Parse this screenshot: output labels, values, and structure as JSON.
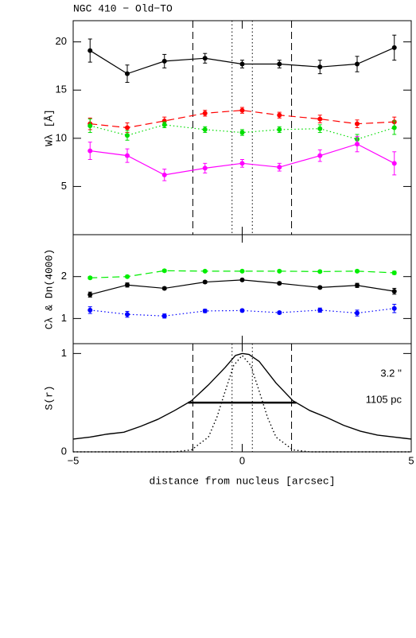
{
  "chart_data": [
    {
      "type": "line",
      "title": "NGC 410  −  Old−TO",
      "ylabel": "Wλ [Å]",
      "x": [
        -4.5,
        -3.4,
        -2.3,
        -1.1,
        0,
        1.1,
        2.3,
        3.4,
        4.5
      ],
      "xlim": [
        -5,
        5
      ],
      "xticks": [
        -5,
        0,
        5
      ],
      "ylim": [
        0,
        22.2
      ],
      "yticks": [
        5,
        10,
        15,
        20
      ],
      "vlines": [
        {
          "x": -1.46,
          "style": "dashed"
        },
        {
          "x": 1.46,
          "style": "dashed"
        },
        {
          "x": -0.3,
          "style": "dotted"
        },
        {
          "x": 0.3,
          "style": "dotted"
        }
      ],
      "series": [
        {
          "color": "#000000",
          "style": "solid",
          "values": [
            19.1,
            16.7,
            18.0,
            18.3,
            17.7,
            17.7,
            17.4,
            17.7,
            19.4
          ],
          "errors": [
            1.2,
            0.9,
            0.7,
            0.5,
            0.4,
            0.4,
            0.7,
            0.8,
            1.3
          ]
        },
        {
          "color": "#ff0000",
          "style": "dashed",
          "values": [
            11.5,
            11.1,
            11.8,
            12.6,
            12.9,
            12.4,
            12.0,
            11.5,
            11.7
          ],
          "errors": [
            0.6,
            0.5,
            0.4,
            0.3,
            0.3,
            0.3,
            0.4,
            0.4,
            0.5
          ]
        },
        {
          "color": "#00dd00",
          "style": "dotted",
          "values": [
            11.3,
            10.3,
            11.4,
            10.9,
            10.6,
            10.9,
            11.0,
            9.9,
            11.1
          ],
          "errors": [
            0.7,
            0.5,
            0.3,
            0.3,
            0.3,
            0.3,
            0.4,
            0.5,
            0.7
          ]
        },
        {
          "color": "#ff00ff",
          "style": "solid",
          "values": [
            8.7,
            8.2,
            6.2,
            6.9,
            7.4,
            7.0,
            8.2,
            9.4,
            7.4
          ],
          "errors": [
            0.9,
            0.7,
            0.6,
            0.5,
            0.4,
            0.4,
            0.6,
            0.8,
            1.2
          ]
        }
      ]
    },
    {
      "type": "line",
      "ylabel": "Cλ & Dn(4000)",
      "x": [
        -4.5,
        -3.4,
        -2.3,
        -1.1,
        0,
        1.1,
        2.3,
        3.4,
        4.5
      ],
      "xlim": [
        -5,
        5
      ],
      "xticks": [
        -5,
        0,
        5
      ],
      "ylim": [
        0.4,
        3.0
      ],
      "yticks": [
        1,
        2
      ],
      "series": [
        {
          "color": "#00ee00",
          "style": "dashed",
          "values": [
            1.97,
            2.0,
            2.14,
            2.13,
            2.13,
            2.13,
            2.12,
            2.13,
            2.09
          ],
          "errors": [
            0.03,
            0.03,
            0.03,
            0.02,
            0.02,
            0.02,
            0.02,
            0.03,
            0.04
          ]
        },
        {
          "color": "#000000",
          "style": "solid",
          "values": [
            1.57,
            1.8,
            1.72,
            1.87,
            1.92,
            1.84,
            1.74,
            1.79,
            1.65
          ],
          "errors": [
            0.06,
            0.05,
            0.03,
            0.03,
            0.03,
            0.03,
            0.03,
            0.05,
            0.07
          ]
        },
        {
          "color": "#0000ff",
          "style": "dotted",
          "values": [
            1.2,
            1.1,
            1.06,
            1.18,
            1.19,
            1.14,
            1.2,
            1.13,
            1.24
          ],
          "errors": [
            0.08,
            0.07,
            0.05,
            0.04,
            0.03,
            0.03,
            0.05,
            0.07,
            0.1
          ]
        }
      ]
    },
    {
      "type": "line",
      "ylabel": "S(r)",
      "xlabel": "distance from nucleus [arcsec]",
      "xlim": [
        -5,
        5
      ],
      "xticks": [
        {
          "value": -5,
          "label": "−5"
        },
        0,
        5
      ],
      "ylim": [
        0,
        1.1
      ],
      "yticks": [
        0,
        1
      ],
      "vlines": [
        {
          "x": -1.46,
          "style": "dashed"
        },
        {
          "x": 1.46,
          "style": "dashed"
        },
        {
          "x": -0.3,
          "style": "dotted"
        },
        {
          "x": 0.3,
          "style": "dotted"
        }
      ],
      "series": [
        {
          "color": "#000000",
          "style": "solid",
          "x": [
            -5,
            -4.5,
            -4,
            -3.5,
            -3,
            -2.5,
            -2,
            -1.5,
            -1,
            -0.5,
            -0.2,
            0,
            0.2,
            0.5,
            1,
            1.5,
            2,
            2.5,
            3,
            3.5,
            4,
            4.5,
            5
          ],
          "values": [
            0.13,
            0.15,
            0.18,
            0.2,
            0.26,
            0.33,
            0.42,
            0.52,
            0.68,
            0.86,
            0.98,
            1.0,
            0.99,
            0.92,
            0.7,
            0.52,
            0.42,
            0.35,
            0.27,
            0.21,
            0.17,
            0.15,
            0.13
          ]
        },
        {
          "color": "#000000",
          "style": "dotted",
          "x": [
            -5,
            -2,
            -1.5,
            -1,
            -0.75,
            -0.5,
            -0.25,
            0,
            0.25,
            0.5,
            0.75,
            1,
            1.5,
            2,
            5
          ],
          "values": [
            0,
            0,
            0.02,
            0.15,
            0.35,
            0.62,
            0.88,
            0.98,
            0.88,
            0.62,
            0.35,
            0.15,
            0.02,
            0,
            0
          ]
        }
      ],
      "segments": [
        {
          "x": [
            -1.6,
            1.6
          ],
          "y": [
            0.5,
            0.5
          ]
        }
      ],
      "annotations": [
        "3.2 ''",
        "1105 pc"
      ]
    }
  ]
}
